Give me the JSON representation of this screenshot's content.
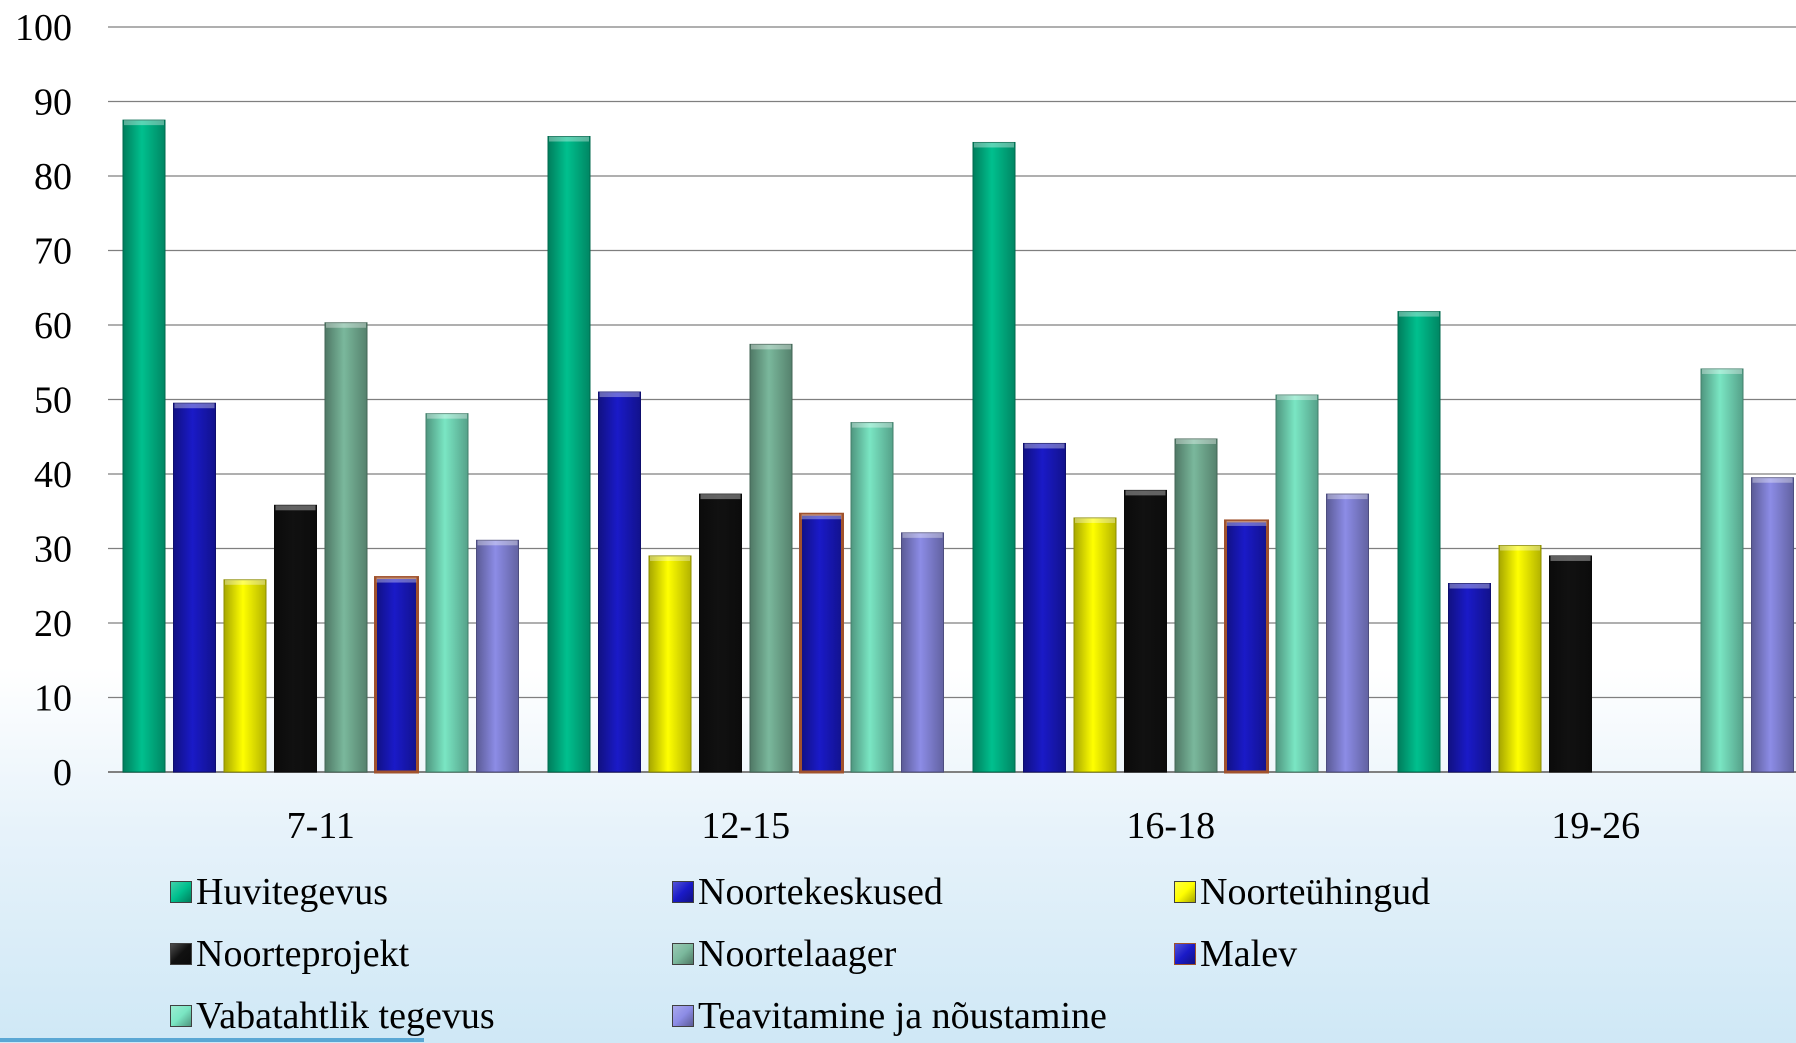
{
  "chart_data": {
    "type": "bar",
    "title": "",
    "xlabel": "",
    "ylabel": "",
    "ylim": [
      0,
      100
    ],
    "y_ticks": [
      "0",
      "10",
      "20",
      "30",
      "40",
      "50",
      "60",
      "70",
      "80",
      "90",
      "100"
    ],
    "grid": true,
    "legend_position": "bottom",
    "categories": [
      "7-11",
      "12-15",
      "16-18",
      "19-26"
    ],
    "series": [
      {
        "name": "Huvitegevus",
        "color": "#00c08e",
        "values": [
          87.5,
          85.3,
          84.5,
          61.8
        ]
      },
      {
        "name": "Noortekeskused",
        "color": "#1a1ac8",
        "values": [
          49.5,
          51.0,
          44.1,
          25.3
        ]
      },
      {
        "name": "Noorteühingud",
        "color": "#ffff00",
        "values": [
          25.8,
          29.0,
          34.1,
          30.4
        ]
      },
      {
        "name": "Noorteprojekt",
        "color": "#111111",
        "values": [
          35.8,
          37.3,
          37.8,
          29.0
        ]
      },
      {
        "name": "Noortelaager",
        "color": "#7ab89c",
        "values": [
          60.3,
          57.4,
          44.7,
          null
        ]
      },
      {
        "name": "Malev",
        "color": "#1a1ac8",
        "border_color": "#a0522d",
        "values": [
          26.1,
          34.6,
          33.7,
          null
        ]
      },
      {
        "name": "Vabatahtlik tegevus",
        "color": "#7ae6c3",
        "values": [
          48.1,
          46.9,
          50.6,
          54.1
        ]
      },
      {
        "name": "Teavitamine ja nõustamine",
        "color": "#8c8ce6",
        "values": [
          31.1,
          32.1,
          37.3,
          39.5
        ]
      }
    ]
  }
}
